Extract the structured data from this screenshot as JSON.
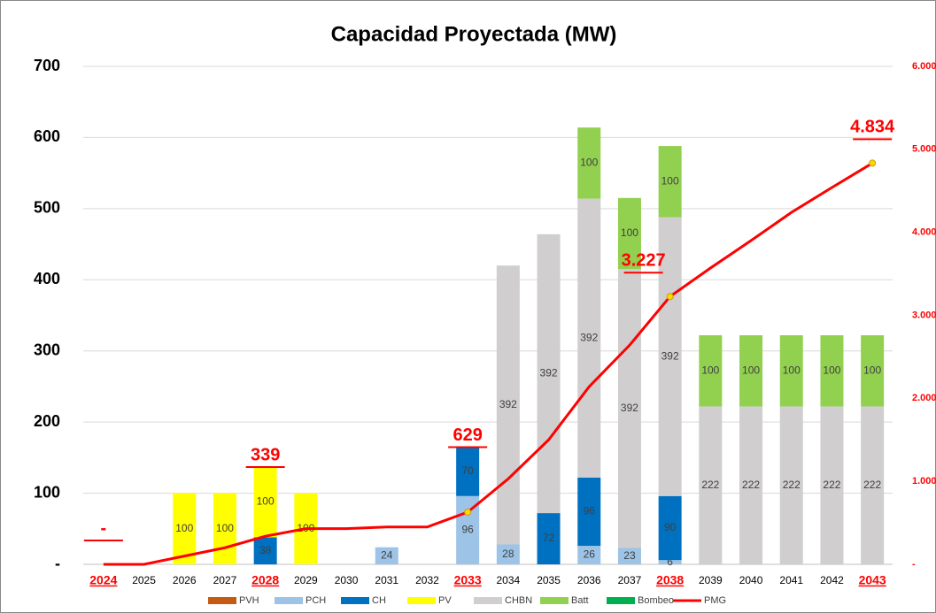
{
  "chart_data": {
    "type": "bar",
    "stacked": true,
    "title": "Capacidad Proyectada (MW)",
    "categories": [
      "2024",
      "2025",
      "2026",
      "2027",
      "2028",
      "2029",
      "2030",
      "2031",
      "2032",
      "2033",
      "2034",
      "2035",
      "2036",
      "2037",
      "2038",
      "2039",
      "2040",
      "2041",
      "2042",
      "2043"
    ],
    "series": [
      {
        "name": "PVH",
        "color": "#c55a11",
        "values": [
          0,
          0,
          0,
          0,
          0,
          0,
          0,
          0,
          0,
          0,
          0,
          0,
          0,
          0,
          0,
          0,
          0,
          0,
          0,
          0
        ]
      },
      {
        "name": "PCH",
        "color": "#9dc3e6",
        "values": [
          0,
          0,
          0,
          0,
          0,
          0,
          0,
          24,
          0,
          96,
          28,
          0,
          26,
          23,
          6,
          0,
          0,
          0,
          0,
          0
        ]
      },
      {
        "name": "CH",
        "color": "#0070c0",
        "values": [
          0,
          0,
          0,
          0,
          38,
          0,
          0,
          0,
          0,
          70,
          0,
          72,
          96,
          0,
          90,
          0,
          0,
          0,
          0,
          0
        ]
      },
      {
        "name": "PV",
        "color": "#ffff00",
        "values": [
          0,
          0,
          100,
          100,
          100,
          100,
          0,
          0,
          0,
          0,
          0,
          0,
          0,
          0,
          0,
          0,
          0,
          0,
          0,
          0
        ]
      },
      {
        "name": "CHBN",
        "color": "#d0cece",
        "values": [
          0,
          0,
          0,
          0,
          0,
          0,
          0,
          0,
          0,
          0,
          392,
          392,
          392,
          392,
          392,
          222,
          222,
          222,
          222,
          222
        ]
      },
      {
        "name": "Batt",
        "color": "#92d050",
        "values": [
          0,
          0,
          0,
          0,
          0,
          0,
          0,
          0,
          0,
          0,
          0,
          0,
          100,
          100,
          100,
          100,
          100,
          100,
          100,
          100
        ]
      },
      {
        "name": "Bombeo",
        "color": "#00b050",
        "values": [
          0,
          0,
          0,
          0,
          0,
          0,
          0,
          0,
          0,
          0,
          0,
          0,
          0,
          0,
          0,
          0,
          0,
          0,
          0,
          0
        ]
      },
      {
        "name": "PMG",
        "color": "#ff0000",
        "type": "line",
        "axis": "y2",
        "values": [
          0,
          0,
          100,
          200,
          339,
          430,
          430,
          450,
          450,
          629,
          1030,
          1500,
          2140,
          2640,
          3227,
          3570,
          3900,
          4240,
          4540,
          4834
        ],
        "value_labels": [
          "-",
          null,
          null,
          null,
          "339",
          null,
          null,
          null,
          null,
          "629",
          null,
          null,
          null,
          null,
          "3.227",
          null,
          null,
          null,
          null,
          "4.834"
        ]
      }
    ],
    "ylim": [
      0,
      700
    ],
    "yticks": [
      {
        "value": 0,
        "label": "-"
      },
      100,
      200,
      300,
      400,
      500,
      600,
      700
    ],
    "y2lim": [
      0,
      6000
    ],
    "y2ticks": [
      {
        "value": 0,
        "label": "-"
      },
      {
        "value": 1000,
        "label": "1.000"
      },
      {
        "value": 2000,
        "label": "2.000"
      },
      {
        "value": 3000,
        "label": "3.000"
      },
      {
        "value": 4000,
        "label": "4.000"
      },
      {
        "value": 5000,
        "label": "5.000"
      },
      {
        "value": 6000,
        "label": "6.000"
      }
    ],
    "grid": true,
    "legend": "bottom"
  }
}
